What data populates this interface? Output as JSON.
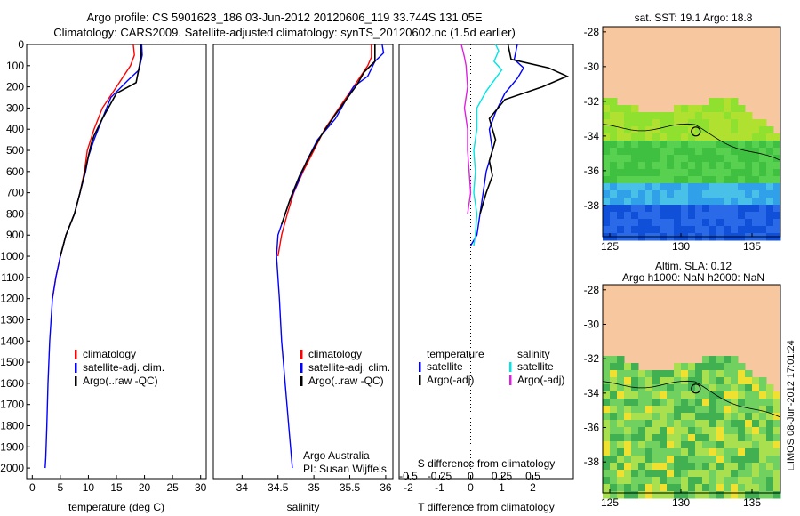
{
  "header": {
    "line1": "Argo profile: CS 5901623_186 03-Jun-2012 20120606_119 33.744S 131.05E",
    "line2": "Climatology: CARS2009. Satellite-adjusted climatology: synTS_20120602.nc (1.5d earlier)"
  },
  "colors": {
    "climatology": "#ff0000",
    "satellite": "#0000ff",
    "argo": "#000000",
    "sat_salinity": "#00e5e5",
    "argo_salinity": "#e020e0",
    "land": "#f7c8a0"
  },
  "chart_data": [
    {
      "type": "line",
      "xlabel": "temperature (deg C)",
      "xlim": [
        -1,
        31
      ],
      "ylim": [
        2050,
        0
      ],
      "xticks": [
        0,
        5,
        10,
        15,
        20,
        25,
        30
      ],
      "yticks": [
        0,
        100,
        200,
        300,
        400,
        500,
        600,
        700,
        800,
        900,
        1000,
        1100,
        1200,
        1300,
        1400,
        1500,
        1600,
        1700,
        1800,
        1900,
        2000
      ],
      "legend": [
        "climatology",
        "satellite-adj. clim.",
        "Argo(..raw -QC)"
      ],
      "series": [
        {
          "name": "climatology",
          "color": "#ff0000",
          "points": [
            [
              18,
              0
            ],
            [
              18.2,
              50
            ],
            [
              17.5,
              100
            ],
            [
              15,
              200
            ],
            [
              12.5,
              300
            ],
            [
              11,
              400
            ],
            [
              9.8,
              500
            ],
            [
              9.3,
              600
            ],
            [
              8.5,
              700
            ],
            [
              7.5,
              800
            ],
            [
              6,
              900
            ],
            [
              5,
              1000
            ],
            [
              4.2,
              1100
            ],
            [
              3.6,
              1200
            ]
          ]
        },
        {
          "name": "satellite-adj. clim.",
          "color": "#0000ff",
          "points": [
            [
              19.5,
              0
            ],
            [
              19.6,
              50
            ],
            [
              19,
              120
            ],
            [
              17,
              170
            ],
            [
              14,
              250
            ],
            [
              12.5,
              350
            ],
            [
              11,
              450
            ],
            [
              10,
              530
            ],
            [
              9.5,
              600
            ],
            [
              8.5,
              700
            ],
            [
              7.5,
              800
            ],
            [
              6,
              900
            ],
            [
              5,
              1000
            ],
            [
              4.2,
              1100
            ],
            [
              3.6,
              1200
            ],
            [
              3.1,
              1400
            ],
            [
              2.8,
              1600
            ],
            [
              2.6,
              1800
            ],
            [
              2.4,
              1950
            ],
            [
              2.3,
              2000
            ]
          ]
        },
        {
          "name": "Argo(..raw -QC)",
          "color": "#000000",
          "points": [
            [
              19.3,
              0
            ],
            [
              19.4,
              50
            ],
            [
              19.1,
              100
            ],
            [
              18.5,
              180
            ],
            [
              15,
              230
            ],
            [
              12.5,
              350
            ],
            [
              11,
              430
            ],
            [
              10.5,
              470
            ],
            [
              9.8,
              550
            ],
            [
              9.4,
              600
            ],
            [
              8.5,
              700
            ],
            [
              7.5,
              800
            ],
            [
              6,
              900
            ],
            [
              5,
              1000
            ]
          ]
        }
      ]
    },
    {
      "type": "line",
      "xlabel": "salinity",
      "xlim": [
        33.6,
        36.1
      ],
      "ylim": [
        2050,
        0
      ],
      "xticks": [
        34,
        34.5,
        35,
        35.5,
        36
      ],
      "legend": [
        "climatology",
        "satellite-adj. clim.",
        "Argo(..raw -QC)"
      ],
      "annotation": [
        "Argo Australia",
        "PI: Susan Wijffels"
      ],
      "series": [
        {
          "name": "climatology",
          "color": "#ff0000",
          "points": [
            [
              35.8,
              0
            ],
            [
              35.8,
              60
            ],
            [
              35.75,
              100
            ],
            [
              35.55,
              200
            ],
            [
              35.35,
              300
            ],
            [
              35.15,
              400
            ],
            [
              35,
              500
            ],
            [
              34.85,
              600
            ],
            [
              34.72,
              700
            ],
            [
              34.63,
              800
            ],
            [
              34.55,
              900
            ],
            [
              34.5,
              1000
            ]
          ]
        },
        {
          "name": "satellite-adj. clim.",
          "color": "#0000ff",
          "points": [
            [
              35.95,
              0
            ],
            [
              35.97,
              40
            ],
            [
              35.85,
              80
            ],
            [
              35.75,
              150
            ],
            [
              35.55,
              200
            ],
            [
              35.3,
              350
            ],
            [
              35.05,
              450
            ],
            [
              34.9,
              550
            ],
            [
              34.78,
              650
            ],
            [
              34.65,
              750
            ],
            [
              34.55,
              850
            ],
            [
              34.5,
              900
            ],
            [
              34.48,
              1000
            ],
            [
              34.5,
              1100
            ],
            [
              34.52,
              1200
            ],
            [
              34.55,
              1400
            ],
            [
              34.6,
              1600
            ],
            [
              34.65,
              1800
            ],
            [
              34.7,
              2000
            ]
          ]
        },
        {
          "name": "Argo(..raw -QC)",
          "color": "#000000",
          "points": [
            [
              35.85,
              0
            ],
            [
              35.85,
              50
            ],
            [
              35.85,
              80
            ],
            [
              35.7,
              130
            ],
            [
              35.6,
              190
            ],
            [
              35.3,
              330
            ],
            [
              35.1,
              430
            ],
            [
              34.95,
              520
            ],
            [
              34.8,
              620
            ],
            [
              34.68,
              720
            ],
            [
              34.6,
              800
            ],
            [
              34.55,
              850
            ]
          ]
        }
      ]
    },
    {
      "type": "line",
      "xlabel": "T difference from climatology",
      "xlabel2": "S difference from climatology",
      "xlim": [
        -2.3,
        3.3
      ],
      "ylim": [
        2050,
        0
      ],
      "xticks": [
        -2,
        -1,
        0,
        1,
        2
      ],
      "sticks": [
        "-0.5",
        "-0.25",
        "0",
        "0.25",
        "0.5"
      ],
      "legend_left_title": "temperature",
      "legend_right_title": "salinity",
      "legend_left": [
        "satellite",
        "Argo(-adj)"
      ],
      "legend_right": [
        "satellite",
        "Argo(-adj)"
      ],
      "series": [
        {
          "name": "satellite",
          "group": "temperature",
          "color": "#0000ff",
          "points": [
            [
              1.5,
              0
            ],
            [
              1.4,
              70
            ],
            [
              1.7,
              110
            ],
            [
              1.5,
              160
            ],
            [
              1.1,
              230
            ],
            [
              0.8,
              320
            ],
            [
              0.6,
              400
            ],
            [
              0.7,
              500
            ],
            [
              0.5,
              600
            ],
            [
              0.4,
              700
            ],
            [
              0.3,
              800
            ],
            [
              0.2,
              900
            ],
            [
              0,
              950
            ]
          ]
        },
        {
          "name": "Argo(-adj)",
          "group": "temperature",
          "color": "#000000",
          "points": [
            [
              1.2,
              0
            ],
            [
              1.3,
              70
            ],
            [
              2.5,
              110
            ],
            [
              3.1,
              150
            ],
            [
              2.3,
              200
            ],
            [
              1.1,
              260
            ],
            [
              0.6,
              350
            ],
            [
              0.8,
              450
            ],
            [
              0.6,
              550
            ],
            [
              0.7,
              620
            ],
            [
              0.5,
              700
            ],
            [
              0.3,
              800
            ]
          ]
        },
        {
          "name": "satellite",
          "group": "salinity",
          "color": "#00e5e5",
          "points": [
            [
              0.8,
              0
            ],
            [
              0.9,
              30
            ],
            [
              0.75,
              80
            ],
            [
              1.0,
              120
            ],
            [
              0.8,
              160
            ],
            [
              0.5,
              220
            ],
            [
              0.2,
              300
            ],
            [
              0.2,
              400
            ],
            [
              0.1,
              500
            ],
            [
              0.15,
              600
            ],
            [
              0.1,
              700
            ],
            [
              0.2,
              800
            ],
            [
              0.15,
              900
            ],
            [
              0.1,
              950
            ]
          ]
        },
        {
          "name": "Argo(-adj)",
          "group": "salinity",
          "color": "#e020e0",
          "points": [
            [
              -0.3,
              0
            ],
            [
              -0.2,
              60
            ],
            [
              -0.15,
              100
            ],
            [
              -0.1,
              200
            ],
            [
              -0.2,
              300
            ],
            [
              -0.1,
              400
            ],
            [
              -0.1,
              500
            ],
            [
              -0.05,
              600
            ],
            [
              0,
              700
            ],
            [
              -0.1,
              800
            ]
          ]
        }
      ]
    },
    {
      "type": "heatmap",
      "title": "sat. SST: 19.1 Argo: 18.8",
      "xlim": [
        124.5,
        137
      ],
      "ylim": [
        -39.8,
        -27.7
      ],
      "xticks": [
        125,
        130,
        135
      ],
      "yticks": [
        -28,
        -30,
        -32,
        -34,
        -36,
        -38
      ],
      "marker": [
        131.05,
        -33.74
      ]
    },
    {
      "type": "heatmap",
      "title": "Altim. SLA: 0.12",
      "subtitle": "Argo h1000: NaN h2000: NaN",
      "xlim": [
        124.5,
        137
      ],
      "ylim": [
        -39.8,
        -27.7
      ],
      "xticks": [
        125,
        130,
        135
      ],
      "yticks": [
        -28,
        -30,
        -32,
        -34,
        -36,
        -38
      ],
      "marker": [
        131.05,
        -33.74
      ]
    }
  ],
  "footer": {
    "timestamp": "□IMOS 08-Jun-2012 17:01:24"
  }
}
